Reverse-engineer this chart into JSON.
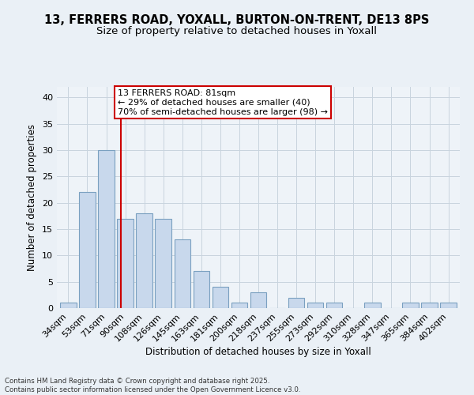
{
  "title": "13, FERRERS ROAD, YOXALL, BURTON-ON-TRENT, DE13 8PS",
  "subtitle": "Size of property relative to detached houses in Yoxall",
  "xlabel": "Distribution of detached houses by size in Yoxall",
  "ylabel": "Number of detached properties",
  "footnote": "Contains HM Land Registry data © Crown copyright and database right 2025.\nContains public sector information licensed under the Open Government Licence v3.0.",
  "categories": [
    "34sqm",
    "53sqm",
    "71sqm",
    "90sqm",
    "108sqm",
    "126sqm",
    "145sqm",
    "163sqm",
    "181sqm",
    "200sqm",
    "218sqm",
    "237sqm",
    "255sqm",
    "273sqm",
    "292sqm",
    "310sqm",
    "328sqm",
    "347sqm",
    "365sqm",
    "384sqm",
    "402sqm"
  ],
  "values": [
    1,
    22,
    30,
    17,
    18,
    17,
    13,
    7,
    4,
    1,
    3,
    0,
    2,
    1,
    1,
    0,
    1,
    0,
    1,
    1,
    1
  ],
  "bar_color": "#c8d8ec",
  "bar_edge_color": "#7aa0c0",
  "vline_x": 2.75,
  "vline_label": "13 FERRERS ROAD: 81sqm",
  "annotation_line1": "← 29% of detached houses are smaller (40)",
  "annotation_line2": "70% of semi-detached houses are larger (98) →",
  "annotation_box_color": "#cc0000",
  "vline_color": "#cc0000",
  "ylim": [
    0,
    42
  ],
  "yticks": [
    0,
    5,
    10,
    15,
    20,
    25,
    30,
    35,
    40
  ],
  "background_color": "#eaf0f6",
  "plot_background": "#eef3f8",
  "grid_color": "#c8d4de",
  "title_fontsize": 10.5,
  "subtitle_fontsize": 9.5,
  "axis_fontsize": 8.5,
  "tick_fontsize": 8,
  "annot_fontsize": 8
}
